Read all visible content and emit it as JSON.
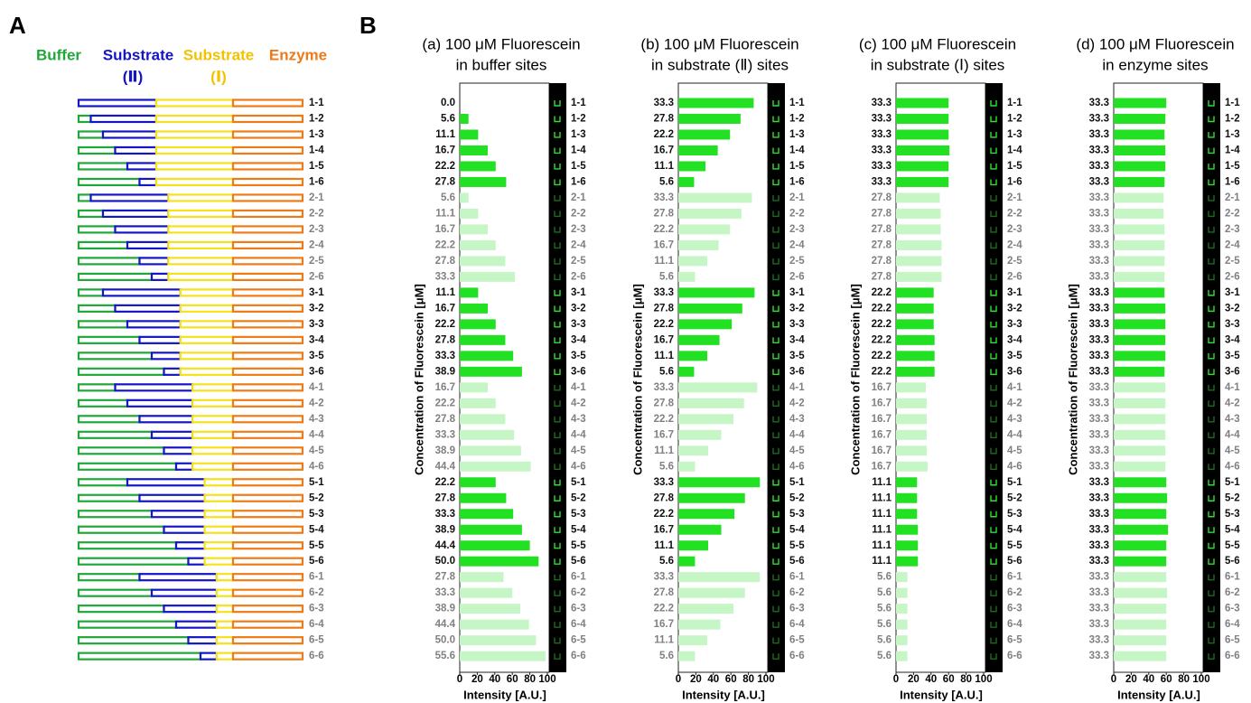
{
  "panel_labels": {
    "a": "A",
    "b": "B"
  },
  "panel_a": {
    "headers": [
      "Buffer",
      "Substrate",
      "(Ⅱ)",
      "Substrate",
      "(Ⅰ)",
      "Enzyme"
    ],
    "rows": [
      "1-1",
      "1-2",
      "1-3",
      "1-4",
      "1-5",
      "1-6",
      "2-1",
      "2-2",
      "2-3",
      "2-4",
      "2-5",
      "2-6",
      "3-1",
      "3-2",
      "3-3",
      "3-4",
      "3-5",
      "3-6",
      "4-1",
      "4-2",
      "4-3",
      "4-4",
      "4-5",
      "4-6",
      "5-1",
      "5-2",
      "5-3",
      "5-4",
      "5-5",
      "5-6",
      "6-1",
      "6-2",
      "6-3",
      "6-4",
      "6-5",
      "6-6"
    ]
  },
  "chart_data": [
    {
      "type": "barh",
      "title_lines": [
        "(a) 100 μM Fluorescein",
        "in buffer sites"
      ],
      "ylabel": "Concentration of Fluorescein [μM]",
      "xlabel": "Intensity [A.U.]",
      "xlim": [
        0,
        100
      ],
      "xticks": [
        0,
        20,
        40,
        60,
        80,
        100
      ],
      "color": "#22e022",
      "alt_color": "#c6f5c6",
      "categories": [
        "1-1",
        "1-2",
        "1-3",
        "1-4",
        "1-5",
        "1-6",
        "2-1",
        "2-2",
        "2-3",
        "2-4",
        "2-5",
        "2-6",
        "3-1",
        "3-2",
        "3-3",
        "3-4",
        "3-5",
        "3-6",
        "4-1",
        "4-2",
        "4-3",
        "4-4",
        "4-5",
        "4-6",
        "5-1",
        "5-2",
        "5-3",
        "5-4",
        "5-5",
        "5-6",
        "6-1",
        "6-2",
        "6-3",
        "6-4",
        "6-5",
        "6-6"
      ],
      "concentration_labels": [
        "0.0",
        "5.6",
        "11.1",
        "16.7",
        "22.2",
        "27.8",
        "5.6",
        "11.1",
        "16.7",
        "22.2",
        "27.8",
        "33.3",
        "11.1",
        "16.7",
        "22.2",
        "27.8",
        "33.3",
        "38.9",
        "16.7",
        "22.2",
        "27.8",
        "33.3",
        "38.9",
        "44.4",
        "22.2",
        "27.8",
        "33.3",
        "38.9",
        "44.4",
        "50.0",
        "27.8",
        "33.3",
        "38.9",
        "44.4",
        "50.0",
        "55.6"
      ],
      "values": [
        0,
        10,
        21,
        32,
        41,
        53,
        10,
        21,
        32,
        41,
        52,
        63,
        21,
        32,
        41,
        52,
        61,
        71,
        32,
        41,
        52,
        62,
        70,
        81,
        41,
        53,
        61,
        71,
        80,
        90,
        50,
        60,
        69,
        79,
        87,
        98
      ]
    },
    {
      "type": "barh",
      "title_lines": [
        "(b) 100 μM Fluorescein",
        "in substrate (Ⅱ) sites"
      ],
      "ylabel": "Concentration of Fluorescein [μM]",
      "xlabel": "Intensity [A.U.]",
      "xlim": [
        0,
        100
      ],
      "xticks": [
        0,
        20,
        40,
        60,
        80,
        100
      ],
      "color": "#22e022",
      "alt_color": "#c6f5c6",
      "categories": [
        "1-1",
        "1-2",
        "1-3",
        "1-4",
        "1-5",
        "1-6",
        "2-1",
        "2-2",
        "2-3",
        "2-4",
        "2-5",
        "2-6",
        "3-1",
        "3-2",
        "3-3",
        "3-4",
        "3-5",
        "3-6",
        "4-1",
        "4-2",
        "4-3",
        "4-4",
        "4-5",
        "4-6",
        "5-1",
        "5-2",
        "5-3",
        "5-4",
        "5-5",
        "5-6",
        "6-1",
        "6-2",
        "6-3",
        "6-4",
        "6-5",
        "6-6"
      ],
      "concentration_labels": [
        "33.3",
        "27.8",
        "22.2",
        "16.7",
        "11.1",
        "5.6",
        "33.3",
        "27.8",
        "22.2",
        "16.7",
        "11.1",
        "5.6",
        "33.3",
        "27.8",
        "22.2",
        "16.7",
        "11.1",
        "5.6",
        "33.3",
        "27.8",
        "22.2",
        "16.7",
        "11.1",
        "5.6",
        "33.3",
        "27.8",
        "22.2",
        "16.7",
        "11.1",
        "5.6",
        "33.3",
        "27.8",
        "22.2",
        "16.7",
        "11.1",
        "5.6"
      ],
      "values": [
        86,
        71,
        59,
        45,
        31,
        18,
        84,
        72,
        59,
        46,
        33,
        19,
        87,
        73,
        61,
        47,
        33,
        18,
        90,
        75,
        63,
        49,
        34,
        19,
        93,
        76,
        64,
        49,
        34,
        19,
        93,
        76,
        63,
        48,
        33,
        19
      ]
    },
    {
      "type": "barh",
      "title_lines": [
        "(c) 100 μM Fluorescein",
        "in substrate (Ⅰ) sites"
      ],
      "ylabel": "Concentration of Fluorescein [μM]",
      "xlabel": "Intensity [A.U.]",
      "xlim": [
        0,
        100
      ],
      "xticks": [
        0,
        20,
        40,
        60,
        80,
        100
      ],
      "color": "#22e022",
      "alt_color": "#c6f5c6",
      "categories": [
        "1-1",
        "1-2",
        "1-3",
        "1-4",
        "1-5",
        "1-6",
        "2-1",
        "2-2",
        "2-3",
        "2-4",
        "2-5",
        "2-6",
        "3-1",
        "3-2",
        "3-3",
        "3-4",
        "3-5",
        "3-6",
        "4-1",
        "4-2",
        "4-3",
        "4-4",
        "4-5",
        "4-6",
        "5-1",
        "5-2",
        "5-3",
        "5-4",
        "5-5",
        "5-6",
        "6-1",
        "6-2",
        "6-3",
        "6-4",
        "6-5",
        "6-6"
      ],
      "concentration_labels": [
        "33.3",
        "33.3",
        "33.3",
        "33.3",
        "33.3",
        "33.3",
        "27.8",
        "27.8",
        "27.8",
        "27.8",
        "27.8",
        "27.8",
        "22.2",
        "22.2",
        "22.2",
        "22.2",
        "22.2",
        "22.2",
        "16.7",
        "16.7",
        "16.7",
        "16.7",
        "16.7",
        "16.7",
        "11.1",
        "11.1",
        "11.1",
        "11.1",
        "11.1",
        "11.1",
        "5.6",
        "5.6",
        "5.6",
        "5.6",
        "5.6",
        "5.6"
      ],
      "values": [
        60,
        60,
        60,
        61,
        60,
        60,
        50,
        51,
        51,
        52,
        52,
        52,
        43,
        43,
        43,
        44,
        44,
        44,
        34,
        35,
        35,
        35,
        35,
        36,
        24,
        24,
        24,
        25,
        25,
        25,
        13,
        13,
        13,
        13,
        13,
        13
      ]
    },
    {
      "type": "barh",
      "title_lines": [
        "(d) 100 μM Fluorescein",
        "in enzyme sites"
      ],
      "ylabel": "Concentration of Fluorescein [μM]",
      "xlabel": "Intensity [A.U.]",
      "xlim": [
        0,
        100
      ],
      "xticks": [
        0,
        20,
        40,
        60,
        80,
        100
      ],
      "color": "#22e022",
      "alt_color": "#c6f5c6",
      "categories": [
        "1-1",
        "1-2",
        "1-3",
        "1-4",
        "1-5",
        "1-6",
        "2-1",
        "2-2",
        "2-3",
        "2-4",
        "2-5",
        "2-6",
        "3-1",
        "3-2",
        "3-3",
        "3-4",
        "3-5",
        "3-6",
        "4-1",
        "4-2",
        "4-3",
        "4-4",
        "4-5",
        "4-6",
        "5-1",
        "5-2",
        "5-3",
        "5-4",
        "5-5",
        "5-6",
        "6-1",
        "6-2",
        "6-3",
        "6-4",
        "6-5",
        "6-6"
      ],
      "concentration_labels": [
        "33.3",
        "33.3",
        "33.3",
        "33.3",
        "33.3",
        "33.3",
        "33.3",
        "33.3",
        "33.3",
        "33.3",
        "33.3",
        "33.3",
        "33.3",
        "33.3",
        "33.3",
        "33.3",
        "33.3",
        "33.3",
        "33.3",
        "33.3",
        "33.3",
        "33.3",
        "33.3",
        "33.3",
        "33.3",
        "33.3",
        "33.3",
        "33.3",
        "33.3",
        "33.3",
        "33.3",
        "33.3",
        "33.3",
        "33.3",
        "33.3",
        "33.3"
      ],
      "values": [
        60,
        59,
        58,
        59,
        59,
        58,
        57,
        57,
        58,
        58,
        58,
        58,
        58,
        59,
        59,
        59,
        59,
        58,
        59,
        59,
        59,
        59,
        59,
        59,
        60,
        61,
        60,
        62,
        60,
        60,
        60,
        61,
        60,
        60,
        60,
        60
      ]
    }
  ]
}
